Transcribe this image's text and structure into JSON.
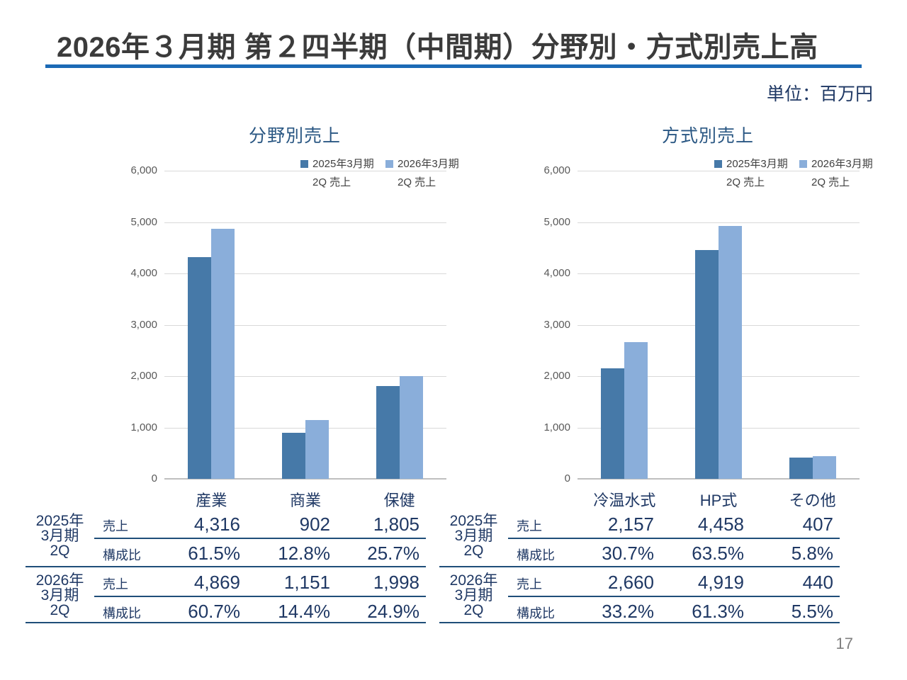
{
  "slide": {
    "title": "2026年３月期 第２四半期（中間期）分野別・方式別売上高",
    "unit_label": "単位：百万円",
    "page_number": "17"
  },
  "colors": {
    "accent_rule": "#1b6ab5",
    "navy_text": "#1f3864",
    "chart_title": "#2a5783",
    "series_2025": "#4679a8",
    "series_2026": "#8aaeda",
    "gridline": "#d9d9d9",
    "page_number_gray": "#7f7f7f"
  },
  "legend": {
    "items": [
      {
        "line1": "2025年3月期",
        "line2": "2Q 売上",
        "color": "#4679a8"
      },
      {
        "line1": "2026年3月期",
        "line2": "2Q 売上",
        "color": "#8aaeda"
      }
    ]
  },
  "chart_data": [
    {
      "type": "bar",
      "title": "分野別売上",
      "categories": [
        "産業",
        "商業",
        "保健"
      ],
      "series": [
        {
          "name": "2025年3月期 2Q 売上",
          "color": "#4679a8",
          "values": [
            4316,
            902,
            1805
          ]
        },
        {
          "name": "2026年3月期 2Q 売上",
          "color": "#8aaeda",
          "values": [
            4869,
            1151,
            1998
          ]
        }
      ],
      "xlabel": "",
      "ylabel": "",
      "ylim": [
        0,
        6000
      ],
      "ytick_step": 1000,
      "grid": true,
      "legend_position": "top-right"
    },
    {
      "type": "bar",
      "title": "方式別売上",
      "categories": [
        "冷温水式",
        "HP式",
        "その他"
      ],
      "series": [
        {
          "name": "2025年3月期 2Q 売上",
          "color": "#4679a8",
          "values": [
            2157,
            4458,
            407
          ]
        },
        {
          "name": "2026年3月期 2Q 売上",
          "color": "#8aaeda",
          "values": [
            2660,
            4919,
            440
          ]
        }
      ],
      "xlabel": "",
      "ylabel": "",
      "ylim": [
        0,
        6000
      ],
      "ytick_step": 1000,
      "grid": true,
      "legend_position": "top-right"
    }
  ],
  "tables": [
    {
      "columns": [
        "産業",
        "商業",
        "保健"
      ],
      "groups": [
        {
          "period_lines": [
            "2025年",
            "3月期",
            "2Q"
          ],
          "rows": [
            {
              "label": "売上",
              "values": [
                "4,316",
                "902",
                "1,805"
              ]
            },
            {
              "label": "構成比",
              "values": [
                "61.5%",
                "12.8%",
                "25.7%"
              ]
            }
          ]
        },
        {
          "period_lines": [
            "2026年",
            "3月期",
            "2Q"
          ],
          "rows": [
            {
              "label": "売上",
              "values": [
                "4,869",
                "1,151",
                "1,998"
              ]
            },
            {
              "label": "構成比",
              "values": [
                "60.7%",
                "14.4%",
                "24.9%"
              ]
            }
          ]
        }
      ]
    },
    {
      "columns": [
        "冷温水式",
        "HP式",
        "その他"
      ],
      "groups": [
        {
          "period_lines": [
            "2025年",
            "3月期",
            "2Q"
          ],
          "rows": [
            {
              "label": "売上",
              "values": [
                "2,157",
                "4,458",
                "407"
              ]
            },
            {
              "label": "構成比",
              "values": [
                "30.7%",
                "63.5%",
                "5.8%"
              ]
            }
          ]
        },
        {
          "period_lines": [
            "2026年",
            "3月期",
            "2Q"
          ],
          "rows": [
            {
              "label": "売上",
              "values": [
                "2,660",
                "4,919",
                "440"
              ]
            },
            {
              "label": "構成比",
              "values": [
                "33.2%",
                "61.3%",
                "5.5%"
              ]
            }
          ]
        }
      ]
    }
  ]
}
